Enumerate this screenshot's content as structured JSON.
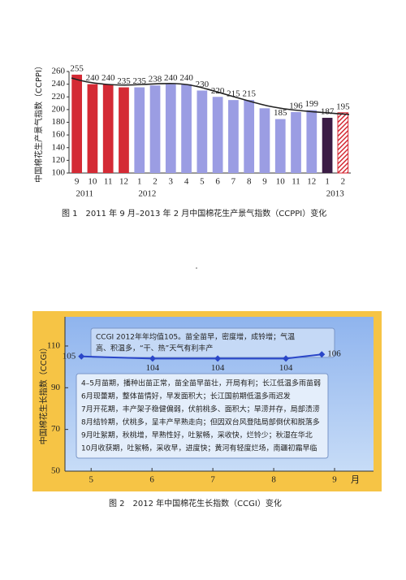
{
  "chart_data": [
    {
      "type": "bar",
      "y_label": "中国棉花生产景气指数（CCPPI）",
      "caption": "图 1　2011 年 9 月–2013 年 2 月中国棉花生产景气指数（CCPPI）变化",
      "groups": [
        {
          "label": "2011",
          "categories": [
            "9",
            "10",
            "11",
            "12"
          ]
        },
        {
          "label": "2012",
          "categories": [
            "1",
            "2",
            "3",
            "4",
            "5",
            "6",
            "7",
            "8",
            "9",
            "10",
            "11",
            "12"
          ]
        },
        {
          "label": "2013",
          "categories": [
            "1",
            "2"
          ]
        }
      ],
      "values": [
        255,
        240,
        240,
        235,
        235,
        238,
        240,
        240,
        230,
        220,
        215,
        215,
        202,
        185,
        196,
        199,
        187,
        195
      ],
      "value_labels": [
        "255",
        "240",
        "240",
        "235",
        "235",
        "238",
        "240",
        "240",
        "230",
        "220",
        "215",
        "215",
        null,
        "185",
        "196",
        "199",
        "187",
        "195"
      ],
      "colors": [
        "#d42a35",
        "#d42a35",
        "#d42a35",
        "#d42a35",
        "#9b9de3",
        "#9b9de3",
        "#9b9de3",
        "#9b9de3",
        "#9b9de3",
        "#9b9de3",
        "#9b9de3",
        "#9b9de3",
        "#9b9de3",
        "#9b9de3",
        "#9b9de3",
        "#9b9de3",
        "#3b1c45",
        "#d42a35"
      ],
      "patterns": [
        "solid",
        "solid",
        "solid",
        "solid",
        "solid",
        "solid",
        "solid",
        "solid",
        "solid",
        "solid",
        "solid",
        "solid",
        "solid",
        "solid",
        "solid",
        "solid",
        "solid",
        "hatch"
      ],
      "ylim": [
        100,
        260
      ],
      "yticks": [
        100,
        120,
        140,
        160,
        180,
        200,
        220,
        240,
        260
      ],
      "grid": false
    },
    {
      "type": "line",
      "y_label": "中国棉花生长指数（CCGI）",
      "x_label": "月",
      "caption": "图 2　2012 年中国棉花生长指数（CCGI）变化",
      "x": [
        4.84,
        6.01,
        7.08,
        8.2,
        8.79
      ],
      "values": [
        105,
        104,
        104,
        104,
        106
      ],
      "color": "#2a46c8",
      "label_color": "#d42a35",
      "xlim": [
        4.57,
        9.64
      ],
      "xticks": [
        5,
        6,
        7,
        8,
        9
      ],
      "ylim": [
        50,
        124
      ],
      "yticks": [
        50,
        70,
        90,
        110
      ],
      "grid": false,
      "annotations": [
        [
          "CCGI 2012年年均值105。苗全苗早，密度增，成铃增；气温",
          "高、积温多，“干、热”天气有利丰产"
        ],
        [
          "4–5月苗期，播种出苗正常，苗全苗早苗壮，开局有利；长江低温多雨苗弱",
          "6月现蕾期，整体苗情好，早发面积大；长江国前期低温多雨迟发",
          "7月开花期，丰产架子稳健偏弱，伏前桃多、面积大；旱涝并存，局部渍涝",
          "8月结铃期，伏桃多，呈丰产早熟走向；但因双台风登陆局部倒伏和脱落多",
          "9月吐絮期，秋桃增，早熟性好，吐絮畅，采收快，烂铃少；秋湿在华北",
          "10月收获期，吐絮畅，采收早，进度快；黄河有轻度烂场，南疆初霜早临"
        ]
      ]
    }
  ]
}
